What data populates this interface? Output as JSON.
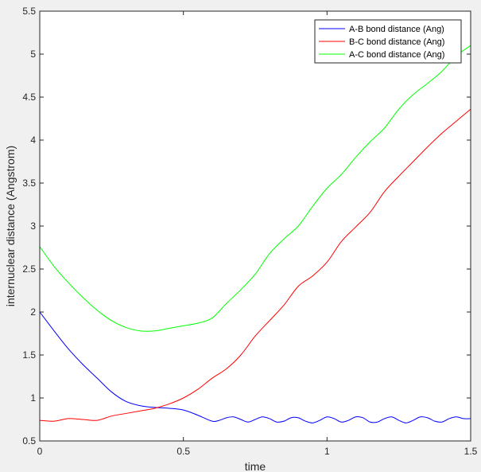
{
  "chart_data": {
    "type": "line",
    "title": "",
    "xlabel": "time",
    "ylabel": "internuclear distance (Angstrom)",
    "xlim": [
      0,
      1.5
    ],
    "ylim": [
      0.5,
      5.5
    ],
    "xticks": [
      0,
      0.5,
      1,
      1.5
    ],
    "xtick_labels": [
      "0",
      "0.5",
      "1",
      "1.5"
    ],
    "yticks": [
      0.5,
      1,
      1.5,
      2,
      2.5,
      3,
      3.5,
      4,
      4.5,
      5,
      5.5
    ],
    "ytick_labels": [
      "0.5",
      "1",
      "1.5",
      "2",
      "2.5",
      "3",
      "3.5",
      "4",
      "4.5",
      "5",
      "5.5"
    ],
    "grid": false,
    "legend": "top-right",
    "series": [
      {
        "name": "A-B bond distance (Ang)",
        "color": "#0000ff",
        "x": [
          0,
          0.05,
          0.1,
          0.15,
          0.2,
          0.25,
          0.3,
          0.35,
          0.4,
          0.45,
          0.5,
          0.55,
          0.6,
          0.625,
          0.65,
          0.675,
          0.7,
          0.725,
          0.75,
          0.775,
          0.8,
          0.825,
          0.85,
          0.875,
          0.9,
          0.925,
          0.95,
          0.975,
          1.0,
          1.025,
          1.05,
          1.075,
          1.1,
          1.125,
          1.15,
          1.175,
          1.2,
          1.225,
          1.25,
          1.275,
          1.3,
          1.325,
          1.35,
          1.375,
          1.4,
          1.425,
          1.45,
          1.475,
          1.5
        ],
        "y": [
          2.0,
          1.78,
          1.57,
          1.39,
          1.23,
          1.07,
          0.96,
          0.91,
          0.89,
          0.88,
          0.86,
          0.8,
          0.73,
          0.74,
          0.77,
          0.78,
          0.75,
          0.72,
          0.75,
          0.78,
          0.76,
          0.72,
          0.73,
          0.77,
          0.77,
          0.73,
          0.71,
          0.74,
          0.78,
          0.76,
          0.72,
          0.74,
          0.78,
          0.77,
          0.72,
          0.72,
          0.76,
          0.78,
          0.74,
          0.71,
          0.74,
          0.78,
          0.77,
          0.73,
          0.72,
          0.76,
          0.78,
          0.76,
          0.76
        ]
      },
      {
        "name": "B-C bond distance (Ang)",
        "color": "#ff0000",
        "x": [
          0,
          0.05,
          0.1,
          0.15,
          0.2,
          0.25,
          0.3,
          0.35,
          0.4,
          0.45,
          0.5,
          0.55,
          0.6,
          0.65,
          0.7,
          0.75,
          0.8,
          0.85,
          0.9,
          0.95,
          1.0,
          1.05,
          1.1,
          1.15,
          1.2,
          1.25,
          1.3,
          1.35,
          1.4,
          1.45,
          1.5
        ],
        "y": [
          0.74,
          0.73,
          0.76,
          0.75,
          0.74,
          0.79,
          0.82,
          0.85,
          0.88,
          0.93,
          1.0,
          1.1,
          1.23,
          1.34,
          1.5,
          1.72,
          1.9,
          2.08,
          2.3,
          2.42,
          2.58,
          2.82,
          2.99,
          3.16,
          3.4,
          3.58,
          3.75,
          3.92,
          4.08,
          4.22,
          4.36
        ]
      },
      {
        "name": "A-C bond distance (Ang)",
        "color": "#00ff00",
        "x": [
          0,
          0.05,
          0.1,
          0.15,
          0.2,
          0.25,
          0.3,
          0.35,
          0.4,
          0.45,
          0.5,
          0.55,
          0.6,
          0.65,
          0.7,
          0.75,
          0.8,
          0.85,
          0.9,
          0.95,
          1.0,
          1.05,
          1.1,
          1.15,
          1.2,
          1.25,
          1.3,
          1.35,
          1.4,
          1.45,
          1.5
        ],
        "y": [
          2.76,
          2.53,
          2.34,
          2.17,
          2.02,
          1.9,
          1.82,
          1.78,
          1.78,
          1.81,
          1.84,
          1.87,
          1.93,
          2.1,
          2.26,
          2.44,
          2.68,
          2.85,
          3.0,
          3.23,
          3.44,
          3.6,
          3.8,
          3.98,
          4.14,
          4.36,
          4.53,
          4.66,
          4.8,
          4.98,
          5.1
        ]
      }
    ]
  }
}
